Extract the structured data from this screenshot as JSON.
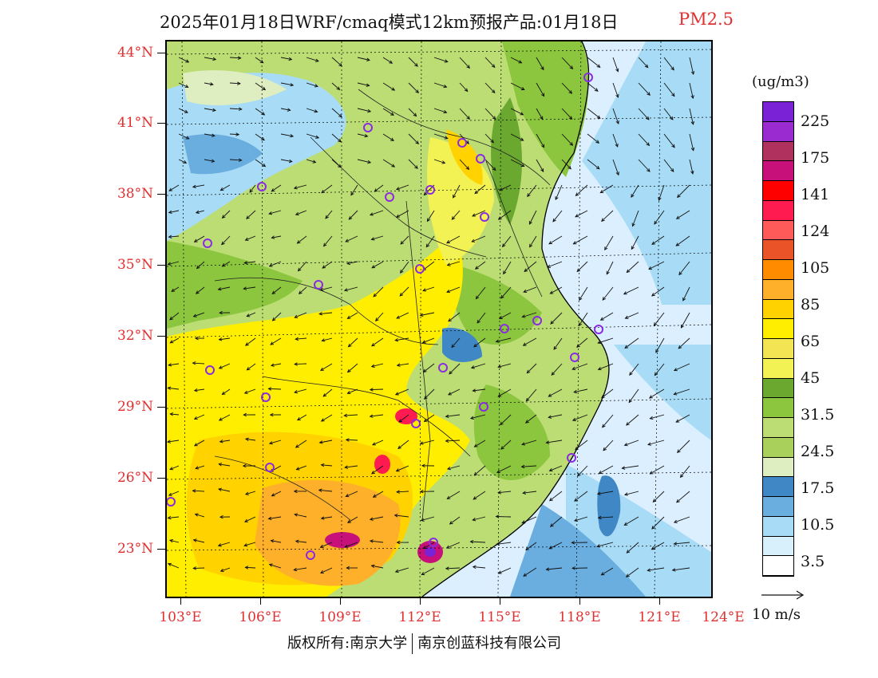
{
  "title": {
    "main": "2025年01月18日WRF/cmaq模式12km预报产品:01月18日",
    "pollutant": "PM2.5"
  },
  "axes": {
    "lat_labels": [
      "44°N",
      "41°N",
      "38°N",
      "35°N",
      "32°N",
      "29°N",
      "26°N",
      "23°N"
    ],
    "lon_labels": [
      "103°E",
      "106°E",
      "109°E",
      "112°E",
      "115°E",
      "118°E",
      "121°E",
      "124°E"
    ]
  },
  "legend": {
    "unit": "(ug/m3)",
    "labels": [
      "225",
      "175",
      "141",
      "124",
      "105",
      "85",
      "65",
      "45",
      "31.5",
      "24.5",
      "17.5",
      "10.5",
      "3.5"
    ],
    "colors": [
      "#7a22d6",
      "#9a2bd0",
      "#b0305e",
      "#c8107a",
      "#ff0000",
      "#ff1a50",
      "#ff5a5a",
      "#ea5228",
      "#ff8c00",
      "#ffb02a",
      "#ffd200",
      "#ffee00",
      "#f3e454",
      "#f2f255",
      "#6aa830",
      "#8cc63e",
      "#bcdd74",
      "#a8d05a",
      "#dfeec0",
      "#3f88c5",
      "#6aaee0",
      "#a8dcf6",
      "#d8f0fc",
      "#ffffff"
    ]
  },
  "wind_reference": {
    "label": "10 m/s"
  },
  "map": {
    "colors": {
      "ocean_light": "#dcefff",
      "ocean_mid": "#a8dcf6",
      "ocean_deep": "#6aaee0",
      "coast_blue": "#3f88c5",
      "green_dark": "#6aa830",
      "green_mid": "#8cc63e",
      "green_light": "#bcdd74",
      "pale_green": "#dfeec0",
      "yellow": "#ffee00",
      "yellow_pale": "#f2f255",
      "gold": "#ffd200",
      "orange": "#ffb02a",
      "red_hot": "#ff1a50",
      "magenta": "#c8107a",
      "purple": "#7a22d6"
    }
  },
  "footer": {
    "copyright": "版权所有:南京大学",
    "company": "南京创蓝科技有限公司"
  }
}
